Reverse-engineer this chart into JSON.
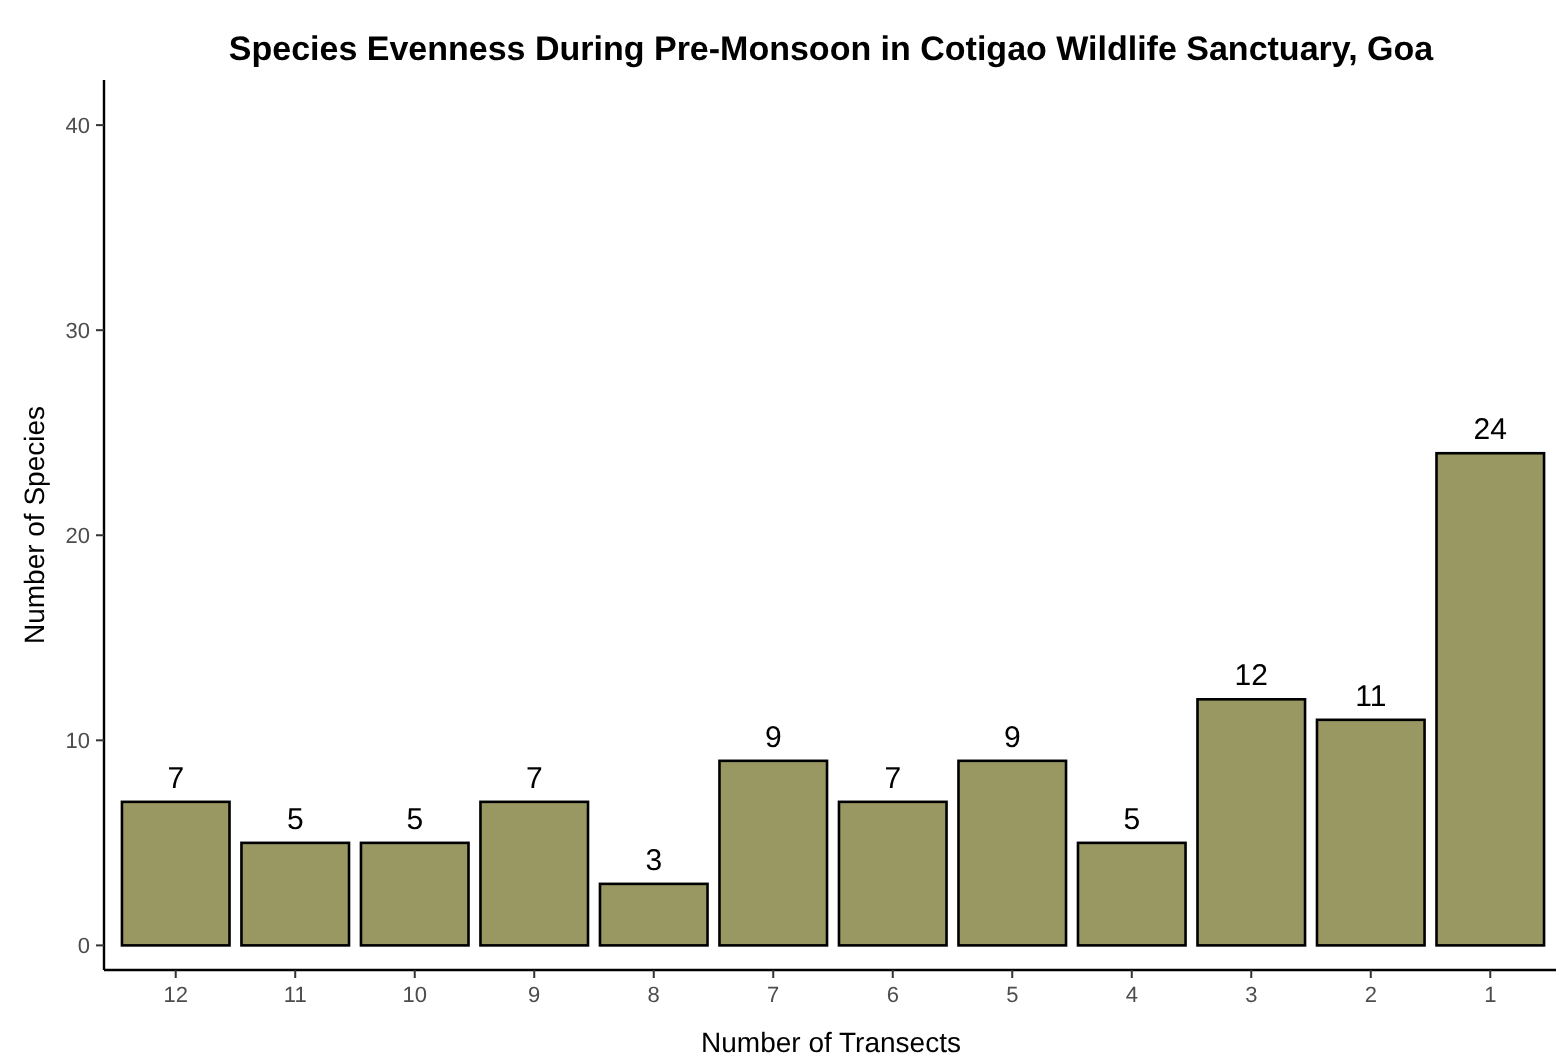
{
  "chart_data": {
    "type": "bar",
    "title": "Species Evenness During Pre-Monsoon in Cotigao Wildlife Sanctuary, Goa",
    "xlabel": "Number of Transects",
    "ylabel": "Number of Species",
    "categories": [
      "12",
      "11",
      "10",
      "9",
      "8",
      "7",
      "6",
      "5",
      "4",
      "3",
      "2",
      "1"
    ],
    "values": [
      7,
      5,
      5,
      7,
      3,
      9,
      7,
      9,
      5,
      12,
      11,
      24
    ],
    "color": "#9a9862",
    "ylim": [
      -1.2,
      42.2
    ],
    "yticks": [
      0,
      10,
      20,
      30,
      40
    ],
    "grid": false,
    "data_labels": true
  }
}
